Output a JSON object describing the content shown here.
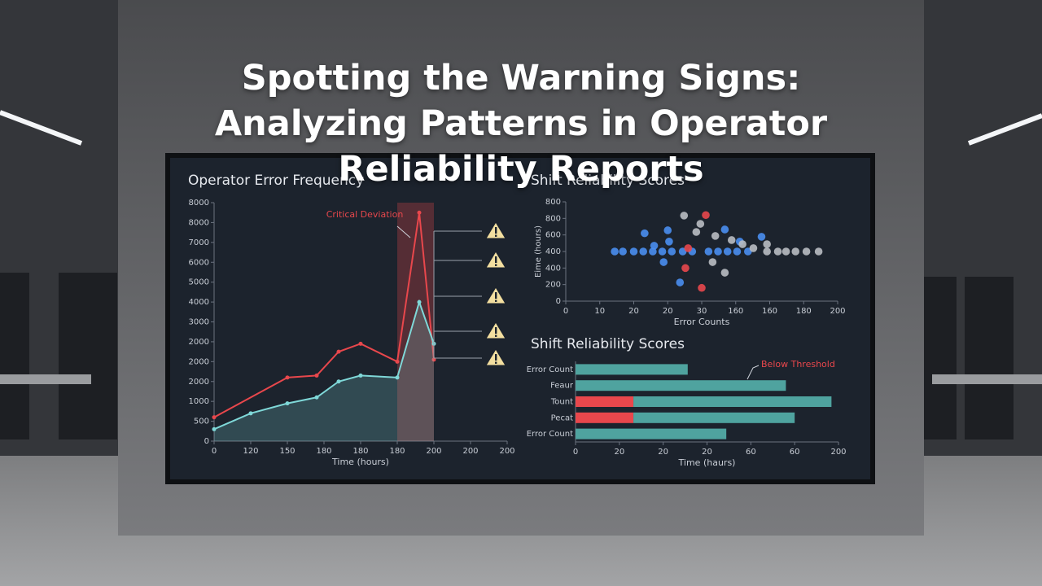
{
  "title": "Spotting the Warning Signs: Analyzing Patterns in Operator Reliability Reports",
  "chart_data": [
    {
      "type": "line",
      "title": "Operator Error Frequency",
      "xlabel": "Time (hours)",
      "xlim": [
        0,
        200
      ],
      "xticks": [
        0,
        {
          "value": 25,
          "label": "120"
        },
        {
          "value": 50,
          "label": "150"
        },
        {
          "value": 75,
          "label": "180"
        },
        {
          "value": 100,
          "label": "180"
        },
        {
          "value": 125,
          "label": "180"
        },
        {
          "value": 150,
          "label": "200"
        },
        {
          "value": 175,
          "label": "200"
        },
        200
      ],
      "ylim": [
        0,
        6000
      ],
      "yticks": [
        0,
        500,
        1000,
        {
          "value": 1500,
          "label": "2000"
        },
        2000,
        {
          "value": 2500,
          "label": "2000"
        },
        3000,
        {
          "value": 3500,
          "label": "4000"
        },
        {
          "value": 4000,
          "label": "5000"
        },
        {
          "value": 4500,
          "label": "6000"
        },
        {
          "value": 5000,
          "label": "7000"
        },
        {
          "value": 5500,
          "label": "8000"
        },
        {
          "value": 6000,
          "label": "8000"
        }
      ],
      "annotation": "Critical Deviation",
      "highlight": [
        125,
        150
      ],
      "series": [
        {
          "color": "#e8474c",
          "x": [
            0,
            50,
            70,
            85,
            100,
            125,
            140,
            150
          ],
          "values": [
            600,
            1600,
            1650,
            2250,
            2450,
            2000,
            5750,
            2050
          ]
        },
        {
          "color": "#7fd8d8",
          "x": [
            0,
            25,
            50,
            70,
            85,
            100,
            125,
            140,
            150
          ],
          "values": [
            300,
            700,
            950,
            1100,
            1500,
            1650,
            1600,
            3500,
            2450
          ]
        }
      ]
    },
    {
      "type": "scatter",
      "title": "Shift Reliability Scores",
      "xlabel": "Error Counts",
      "ylabel": "Eime (hours)",
      "xlim": [
        0,
        200
      ],
      "xticks": [
        0,
        {
          "value": 25,
          "label": "10"
        },
        {
          "value": 50,
          "label": "20"
        },
        {
          "value": 75,
          "label": "20"
        },
        {
          "value": 100,
          "label": "30"
        },
        {
          "value": 125,
          "label": "160"
        },
        {
          "value": 150,
          "label": "160"
        },
        {
          "value": 175,
          "label": "180"
        },
        200
      ],
      "ylim": [
        0,
        600
      ],
      "yticks": [
        0,
        {
          "value": 100,
          "label": "200"
        },
        {
          "value": 200,
          "label": "400"
        },
        {
          "value": 300,
          "label": "400"
        },
        {
          "value": 400,
          "label": "600"
        },
        {
          "value": 500,
          "label": "800"
        },
        {
          "value": 600,
          "label": "800"
        }
      ],
      "series": [
        {
          "color": "#4a8ef0",
          "x": [
            36,
            42,
            50,
            57,
            64,
            71,
            78,
            86,
            93,
            105,
            112,
            119,
            126,
            134,
            58,
            65,
            76,
            84,
            117,
            128,
            144,
            75,
            72
          ],
          "values": [
            300,
            300,
            300,
            300,
            300,
            300,
            300,
            300,
            300,
            300,
            300,
            300,
            300,
            300,
            410,
            335,
            360,
            113,
            433,
            360,
            389,
            428,
            236
          ]
        },
        {
          "color": "#b9bcc2",
          "x": [
            87,
            99,
            96,
            110,
            122,
            130,
            138,
            148,
            156,
            162,
            169,
            177,
            186,
            117,
            108,
            148
          ],
          "values": [
            517,
            467,
            418,
            394,
            369,
            344,
            320,
            300,
            300,
            300,
            300,
            300,
            300,
            172,
            236,
            344
          ]
        },
        {
          "color": "#e8474c",
          "x": [
            103,
            100,
            90,
            88
          ],
          "values": [
            520,
            80,
            320,
            200
          ]
        }
      ]
    },
    {
      "type": "barh",
      "title": "Shift Reliability Scores",
      "xlabel": "Time (haurs)",
      "categories": [
        "Error Count",
        "Feaur",
        "Tount",
        "Pecat",
        "Error Count"
      ],
      "xlim": [
        0,
        150
      ],
      "xticks": [
        0,
        {
          "value": 25,
          "label": "20"
        },
        {
          "value": 50,
          "label": "20"
        },
        {
          "value": 75,
          "label": "20"
        },
        {
          "value": 100,
          "label": "60"
        },
        {
          "value": 125,
          "label": "60"
        },
        {
          "value": 150,
          "label": "200"
        }
      ],
      "series": [
        {
          "name": "Below Threshold",
          "color": "#e8474c",
          "values": [
            null,
            null,
            33,
            33,
            null
          ]
        },
        {
          "color": "#4fa39f",
          "values": [
            64,
            120,
            113,
            92,
            86
          ]
        }
      ]
    }
  ]
}
